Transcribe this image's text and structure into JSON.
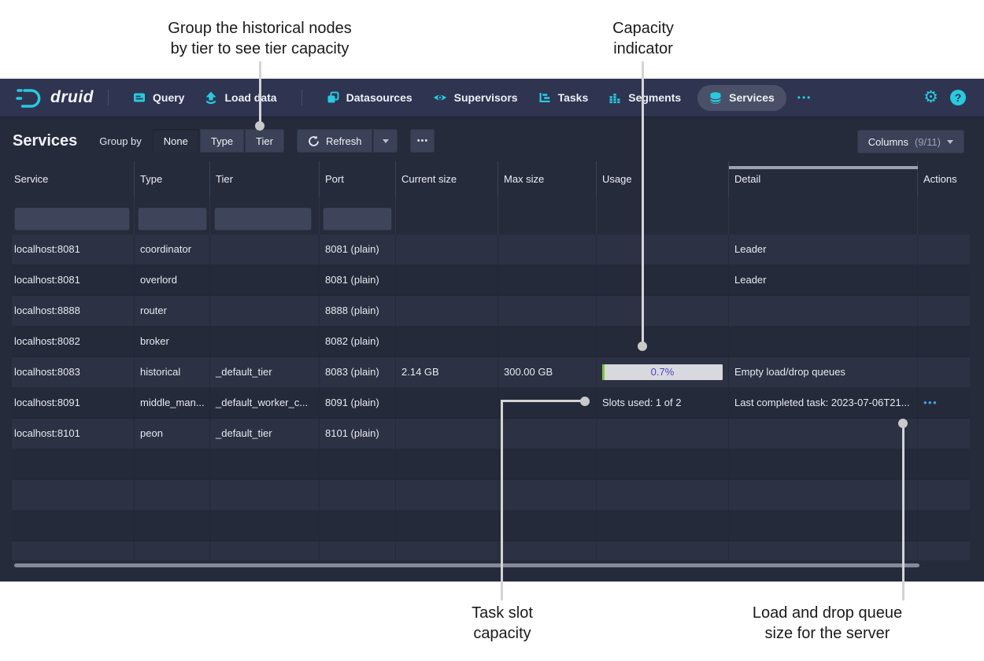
{
  "colors": {
    "accent_cyan": "#25cbe0",
    "navbar_bg": "#2f3450",
    "page_bg": "#262b3c",
    "usage_bar_bg": "#d8d9de",
    "usage_bar_fill_green": "#7ec637",
    "usage_bar_text_purple": "#5142c5",
    "actions_blue": "#3fa6e8",
    "annotation_line_gray": "#d4d4d4"
  },
  "icons": {
    "settings_gear": "⚙",
    "help_question": "?",
    "more_dots": "•••"
  },
  "annotations": {
    "group_tier": {
      "line1": "Group the historical nodes",
      "line2": "by tier to see tier capacity"
    },
    "capacity": {
      "line1": "Capacity",
      "line2": "indicator"
    },
    "task_slot": {
      "line1": "Task slot",
      "line2": "capacity"
    },
    "load_drop": {
      "line1": "Load and drop queue",
      "line2": "size for the server"
    }
  },
  "navbar": {
    "logo_text": "druid",
    "items": [
      {
        "label": "Query"
      },
      {
        "label": "Load data"
      },
      {
        "label": "Datasources"
      },
      {
        "label": "Supervisors"
      },
      {
        "label": "Tasks"
      },
      {
        "label": "Segments"
      },
      {
        "label": "Services",
        "active": true
      }
    ]
  },
  "toolbar": {
    "title": "Services",
    "group_by_label": "Group by",
    "group_buttons": [
      {
        "label": "None",
        "active": true
      },
      {
        "label": "Type",
        "active": false
      },
      {
        "label": "Tier",
        "active": false
      }
    ],
    "refresh_label": "Refresh",
    "columns_label": "Columns",
    "columns_count": "(9/11)"
  },
  "table": {
    "columns": [
      "Service",
      "Type",
      "Tier",
      "Port",
      "Current size",
      "Max size",
      "Usage",
      "Detail",
      "Actions"
    ],
    "rows": [
      {
        "service": "localhost:8081",
        "type": "coordinator",
        "tier": "",
        "port": "8081 (plain)",
        "current_size": "",
        "max_size": "",
        "usage": "",
        "detail": "Leader",
        "actions_more": false
      },
      {
        "service": "localhost:8081",
        "type": "overlord",
        "tier": "",
        "port": "8081 (plain)",
        "current_size": "",
        "max_size": "",
        "usage": "",
        "detail": "Leader",
        "actions_more": false
      },
      {
        "service": "localhost:8888",
        "type": "router",
        "tier": "",
        "port": "8888 (plain)",
        "current_size": "",
        "max_size": "",
        "usage": "",
        "detail": "",
        "actions_more": false
      },
      {
        "service": "localhost:8082",
        "type": "broker",
        "tier": "",
        "port": "8082 (plain)",
        "current_size": "",
        "max_size": "",
        "usage": "",
        "detail": "",
        "actions_more": false
      },
      {
        "service": "localhost:8083",
        "type": "historical",
        "tier": "_default_tier",
        "port": "8083 (plain)",
        "current_size": "2.14 GB",
        "max_size": "300.00 GB",
        "usage_bar": {
          "label": "0.7%",
          "percent": 0.7
        },
        "detail": "Empty load/drop queues",
        "actions_more": false
      },
      {
        "service": "localhost:8091",
        "type": "middle_man...",
        "tier": "_default_worker_c...",
        "port": "8091 (plain)",
        "current_size": "",
        "max_size": "",
        "usage": "Slots used: 1 of 2",
        "detail": "Last completed task: 2023-07-06T21...",
        "actions_more": true
      },
      {
        "service": "localhost:8101",
        "type": "peon",
        "tier": "_default_tier",
        "port": "8101 (plain)",
        "current_size": "",
        "max_size": "",
        "usage": "",
        "detail": "",
        "actions_more": false
      }
    ],
    "empty_row_count": 4
  }
}
